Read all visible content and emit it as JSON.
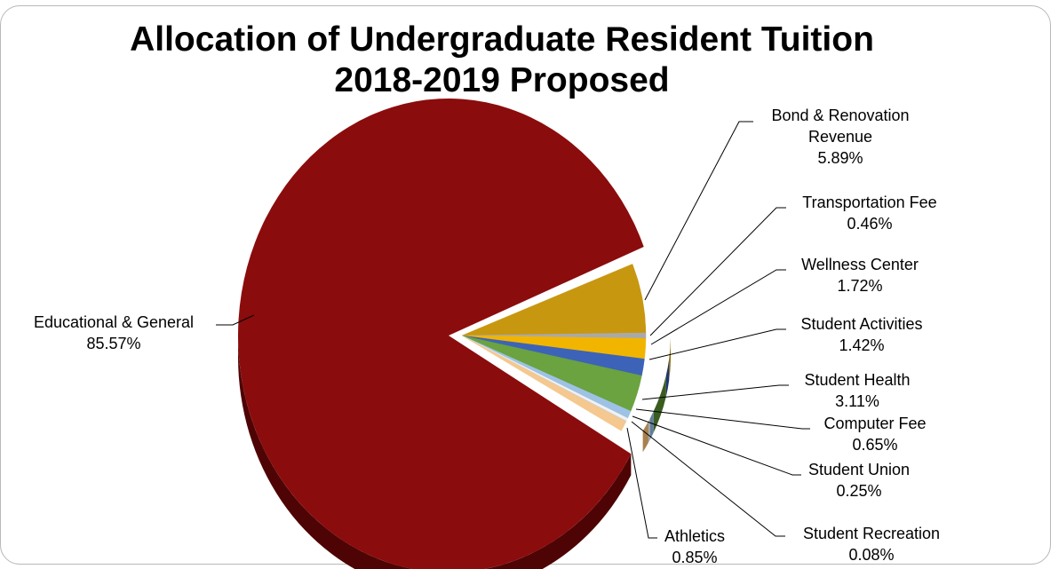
{
  "chart_data": {
    "type": "pie",
    "title_line1": "Allocation of Undergraduate Resident Tuition",
    "title_line2": "2018-2019 Proposed",
    "slices": [
      {
        "name": "Educational & General",
        "name_lines": [
          "Educational & General"
        ],
        "value": 85.57,
        "label": "85.57%",
        "color": "#8b0c0c",
        "side": "#4e0404"
      },
      {
        "name": "Bond & Renovation Revenue",
        "name_lines": [
          "Bond & Renovation",
          "Revenue"
        ],
        "value": 5.89,
        "label": "5.89%",
        "color": "#c89710",
        "side": "#7a5a06"
      },
      {
        "name": "Transportation Fee",
        "name_lines": [
          "Transportation Fee"
        ],
        "value": 0.46,
        "label": "0.46%",
        "color": "#a9a9a9",
        "side": "#666666"
      },
      {
        "name": "Wellness Center",
        "name_lines": [
          "Wellness Center"
        ],
        "value": 1.72,
        "label": "1.72%",
        "color": "#f1b500",
        "side": "#8d6a00"
      },
      {
        "name": "Student Activities",
        "name_lines": [
          "Student Activities"
        ],
        "value": 1.42,
        "label": "1.42%",
        "color": "#3c63b8",
        "side": "#1f3670"
      },
      {
        "name": "Student Health",
        "name_lines": [
          "Student Health"
        ],
        "value": 3.11,
        "label": "3.11%",
        "color": "#6aa33f",
        "side": "#3a5c20"
      },
      {
        "name": "Computer Fee",
        "name_lines": [
          "Computer Fee"
        ],
        "value": 0.65,
        "label": "0.65%",
        "color": "#9ec2e6",
        "side": "#5f7d9c"
      },
      {
        "name": "Student Union",
        "name_lines": [
          "Student Union"
        ],
        "value": 0.25,
        "label": "0.25%",
        "color": "#f2f2f2",
        "side": "#a0a0a0"
      },
      {
        "name": "Student Recreation",
        "name_lines": [
          "Student Recreation"
        ],
        "value": 0.08,
        "label": "0.08%",
        "color": "#cfcfcf",
        "side": "#8a8a8a"
      },
      {
        "name": "Athletics",
        "name_lines": [
          "Athletics"
        ],
        "value": 0.85,
        "label": "0.85%",
        "color": "#f4c88e",
        "side": "#a7814c"
      }
    ],
    "legend": "none"
  }
}
